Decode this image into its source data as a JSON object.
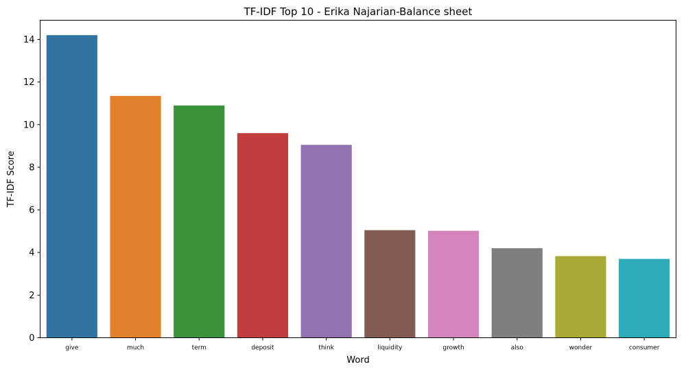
{
  "chart_data": {
    "type": "bar",
    "title": "TF-IDF Top 10 - Erika Najarian-Balance sheet",
    "xlabel": "Word",
    "ylabel": "TF-IDF Score",
    "categories": [
      "give",
      "much",
      "term",
      "deposit",
      "think",
      "liquidity",
      "growth",
      "also",
      "wonder",
      "consumer"
    ],
    "values": [
      14.2,
      11.35,
      10.9,
      9.6,
      9.05,
      5.05,
      5.02,
      4.2,
      3.83,
      3.7
    ],
    "colors": [
      "#3274a1",
      "#e1812c",
      "#3a923a",
      "#c03d3e",
      "#9372b2",
      "#845b53",
      "#d684bd",
      "#7f7f7f",
      "#a9aa35",
      "#2eabb8"
    ],
    "yticks": [
      0,
      2,
      4,
      6,
      8,
      10,
      12,
      14
    ],
    "ylim": [
      0,
      14.9
    ],
    "grid": false,
    "legend": "none"
  }
}
